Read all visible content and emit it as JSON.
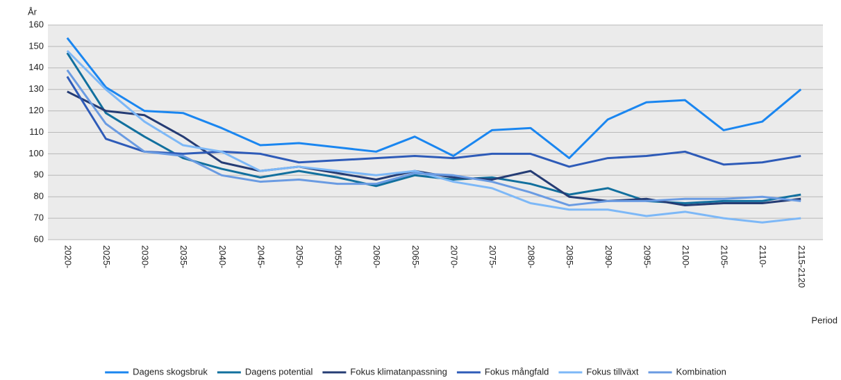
{
  "chart_data": {
    "type": "line",
    "y_label": "År",
    "x_label": "Period",
    "categories": [
      "2020-",
      "2025-",
      "2030-",
      "2035-",
      "2040-",
      "2045-",
      "2050-",
      "2055-",
      "2060-",
      "2065-",
      "2070-",
      "2075-",
      "2080-",
      "2085-",
      "2090-",
      "2095-",
      "2100-",
      "2105-",
      "2110-",
      "2115-2120"
    ],
    "ylim": [
      60,
      160
    ],
    "yticks": [
      60,
      70,
      80,
      90,
      100,
      110,
      120,
      130,
      140,
      150,
      160
    ],
    "grid": true,
    "series": [
      {
        "name": "Dagens skogsbruk",
        "color": "#1a86f0",
        "values": [
          154,
          131,
          120,
          119,
          112,
          104,
          105,
          103,
          101,
          108,
          99,
          111,
          112,
          98,
          116,
          124,
          125,
          111,
          115,
          130
        ]
      },
      {
        "name": "Dagens potential",
        "color": "#12709e",
        "values": [
          147,
          119,
          108,
          98,
          93,
          89,
          92,
          89,
          85,
          90,
          88,
          89,
          86,
          81,
          84,
          78,
          77,
          78,
          78,
          81
        ]
      },
      {
        "name": "Fokus klimatanpassning",
        "color": "#253c74",
        "values": [
          129,
          120,
          118,
          108,
          96,
          92,
          94,
          91,
          88,
          92,
          89,
          88,
          92,
          80,
          78,
          79,
          76,
          77,
          77,
          79
        ]
      },
      {
        "name": "Fokus mångfald",
        "color": "#2e5bb8",
        "values": [
          136,
          107,
          101,
          100,
          101,
          100,
          96,
          97,
          98,
          99,
          98,
          100,
          100,
          94,
          98,
          99,
          101,
          95,
          96,
          99
        ]
      },
      {
        "name": "Fokus tillväxt",
        "color": "#7db8f7",
        "values": [
          148,
          130,
          115,
          104,
          101,
          92,
          94,
          92,
          90,
          92,
          87,
          84,
          77,
          74,
          74,
          71,
          73,
          70,
          68,
          70
        ]
      },
      {
        "name": "Kombination",
        "color": "#6a9be2",
        "values": [
          139,
          114,
          101,
          99,
          90,
          87,
          88,
          86,
          86,
          91,
          90,
          87,
          82,
          76,
          78,
          78,
          79,
          79,
          80,
          78
        ]
      }
    ]
  }
}
